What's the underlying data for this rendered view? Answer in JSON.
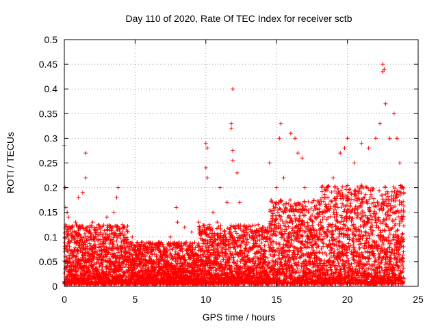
{
  "chart_data": {
    "type": "scatter",
    "title": "Day 110 of 2020, Rate Of TEC Index for receiver sctb",
    "xlabel": "GPS time / hours",
    "ylabel": "ROTI / TECUs",
    "xlim": [
      0,
      25
    ],
    "ylim": [
      0,
      0.5
    ],
    "x_ticks": [
      0,
      5,
      10,
      15,
      20,
      25
    ],
    "x_tick_labels": [
      "0",
      "5",
      "10",
      "15",
      "20",
      "25"
    ],
    "y_ticks": [
      0,
      0.05,
      0.1,
      0.15,
      0.2,
      0.25,
      0.3,
      0.35,
      0.4,
      0.45,
      0.5
    ],
    "y_tick_labels": [
      "0",
      "0.05",
      "0.1",
      "0.15",
      "0.2",
      "0.25",
      "0.3",
      "0.35",
      "0.4",
      "0.45",
      "0.5"
    ],
    "grid": true,
    "marker": "+",
    "color": "#ff0000",
    "series": [
      {
        "points": [
          [
            0.0,
            0.285
          ],
          [
            0.05,
            0.2
          ],
          [
            0.1,
            0.16
          ],
          [
            0.2,
            0.15
          ],
          [
            0.3,
            0.14
          ],
          [
            0.5,
            0.12
          ],
          [
            0.8,
            0.13
          ],
          [
            1.0,
            0.18
          ],
          [
            1.3,
            0.19
          ],
          [
            1.5,
            0.27
          ],
          [
            1.5,
            0.22
          ],
          [
            2.0,
            0.13
          ],
          [
            2.5,
            0.12
          ],
          [
            3.0,
            0.14
          ],
          [
            3.5,
            0.15
          ],
          [
            3.8,
            0.2
          ],
          [
            3.7,
            0.18
          ],
          [
            4.2,
            0.12
          ],
          [
            4.8,
            0.1
          ],
          [
            5.5,
            0.09
          ],
          [
            6.0,
            0.08
          ],
          [
            6.5,
            0.085
          ],
          [
            7.0,
            0.08
          ],
          [
            7.5,
            0.1
          ],
          [
            7.9,
            0.16
          ],
          [
            8.0,
            0.13
          ],
          [
            8.5,
            0.12
          ],
          [
            9.0,
            0.11
          ],
          [
            9.5,
            0.13
          ],
          [
            10.0,
            0.29
          ],
          [
            10.1,
            0.28
          ],
          [
            10.0,
            0.24
          ],
          [
            10.1,
            0.22
          ],
          [
            10.5,
            0.15
          ],
          [
            10.8,
            0.13
          ],
          [
            11.0,
            0.2
          ],
          [
            11.5,
            0.17
          ],
          [
            11.8,
            0.33
          ],
          [
            11.8,
            0.32
          ],
          [
            11.9,
            0.4
          ],
          [
            11.9,
            0.275
          ],
          [
            11.9,
            0.255
          ],
          [
            12.2,
            0.23
          ],
          [
            12.4,
            0.17
          ],
          [
            12.8,
            0.1
          ],
          [
            13.5,
            0.09
          ],
          [
            14.0,
            0.12
          ],
          [
            14.5,
            0.25
          ],
          [
            15.0,
            0.2
          ],
          [
            15.3,
            0.33
          ],
          [
            15.2,
            0.3
          ],
          [
            15.5,
            0.22
          ],
          [
            16.0,
            0.31
          ],
          [
            16.3,
            0.3
          ],
          [
            16.5,
            0.27
          ],
          [
            16.8,
            0.26
          ],
          [
            17.0,
            0.2
          ],
          [
            17.5,
            0.17
          ],
          [
            18.0,
            0.15
          ],
          [
            18.5,
            0.2
          ],
          [
            19.0,
            0.22
          ],
          [
            19.5,
            0.27
          ],
          [
            19.8,
            0.28
          ],
          [
            20.0,
            0.3
          ],
          [
            20.5,
            0.25
          ],
          [
            21.0,
            0.29
          ],
          [
            21.5,
            0.28
          ],
          [
            22.0,
            0.3
          ],
          [
            22.3,
            0.33
          ],
          [
            22.5,
            0.45
          ],
          [
            22.5,
            0.435
          ],
          [
            22.6,
            0.44
          ],
          [
            22.7,
            0.37
          ],
          [
            23.0,
            0.3
          ],
          [
            23.3,
            0.35
          ],
          [
            23.5,
            0.3
          ],
          [
            23.7,
            0.25
          ],
          [
            23.9,
            0.2
          ]
        ]
      }
    ]
  }
}
